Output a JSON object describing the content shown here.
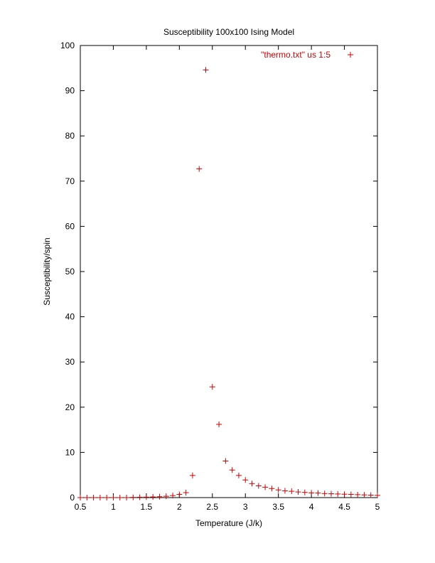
{
  "chart_data": {
    "type": "scatter",
    "title": "Susceptibility 100x100 Ising Model",
    "xlabel": "Temperature (J/k)",
    "ylabel": "Susceptibility/spin",
    "xlim": [
      0.5,
      5
    ],
    "ylim": [
      0,
      100
    ],
    "x_ticks": [
      "0.5",
      "1",
      "1.5",
      "2",
      "2.5",
      "3",
      "3.5",
      "4",
      "4.5",
      "5"
    ],
    "y_ticks": [
      "0",
      "10",
      "20",
      "30",
      "40",
      "50",
      "60",
      "70",
      "80",
      "90",
      "100"
    ],
    "grid": false,
    "legend_position": "top-right",
    "marker": "+",
    "color": "#cc0000",
    "series": [
      {
        "name": "\"thermo.txt\" us 1:5",
        "x": [
          0.5,
          0.6,
          0.7,
          0.8,
          0.9,
          1.0,
          1.1,
          1.2,
          1.3,
          1.4,
          1.5,
          1.6,
          1.7,
          1.8,
          1.9,
          2.0,
          2.1,
          2.2,
          2.3,
          2.4,
          2.5,
          2.6,
          2.7,
          2.8,
          2.9,
          3.0,
          3.1,
          3.2,
          3.3,
          3.4,
          3.5,
          3.6,
          3.7,
          3.8,
          3.9,
          4.0,
          4.1,
          4.2,
          4.3,
          4.4,
          4.5,
          4.6,
          4.7,
          4.8,
          4.9,
          5.0
        ],
        "values": [
          0.0,
          0.0,
          0.0,
          0.0,
          0.0,
          0.0,
          0.0,
          0.0,
          0.05,
          0.08,
          0.1,
          0.15,
          0.2,
          0.3,
          0.45,
          0.7,
          1.1,
          4.9,
          72.7,
          94.6,
          24.5,
          16.2,
          8.1,
          6.1,
          4.9,
          3.9,
          3.1,
          2.6,
          2.3,
          2.0,
          1.7,
          1.5,
          1.4,
          1.25,
          1.15,
          1.05,
          1.0,
          0.9,
          0.85,
          0.8,
          0.75,
          0.7,
          0.65,
          0.6,
          0.55,
          0.5
        ]
      }
    ]
  }
}
